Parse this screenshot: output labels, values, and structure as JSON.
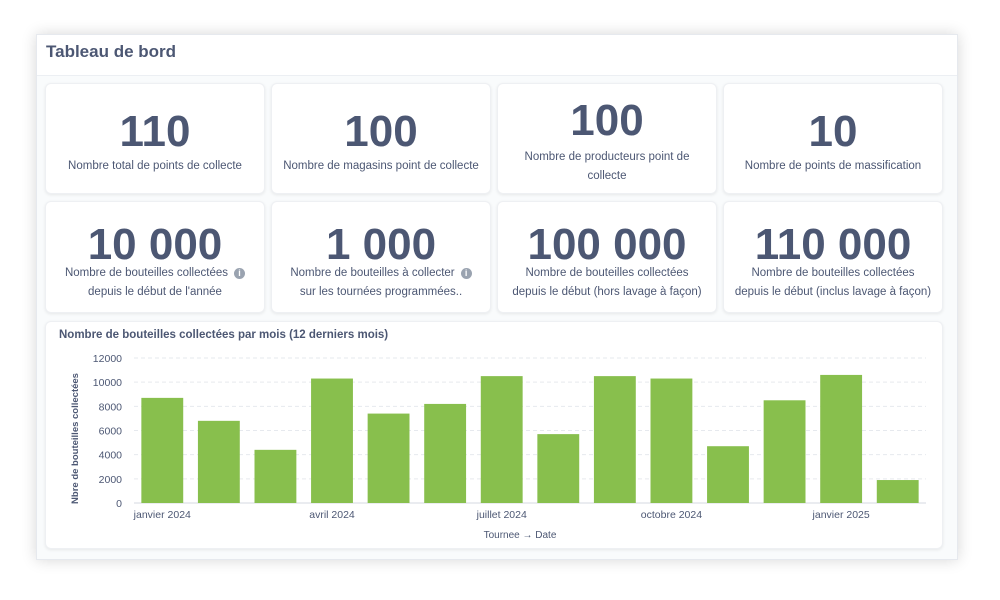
{
  "dashboard": {
    "title": "Tableau de bord"
  },
  "stats_row1": [
    {
      "value": "110",
      "label_lines": [
        "Nombre total de points de collecte"
      ]
    },
    {
      "value": "100",
      "label_lines": [
        "Nombre de magasins point de collecte"
      ]
    },
    {
      "value": "100",
      "label_lines": [
        "Nombre de producteurs point de",
        "collecte"
      ]
    },
    {
      "value": "10",
      "label_lines": [
        "Nombre de points de massification"
      ]
    }
  ],
  "stats_row2": [
    {
      "value": "10 000",
      "label_lines": [
        "Nombre de bouteilles collectées",
        "depuis le début de l'année"
      ],
      "info": true
    },
    {
      "value": "1 000",
      "label_lines": [
        "Nombre de bouteilles à collecter",
        "sur les tournées programmées.."
      ],
      "info": true
    },
    {
      "value": "100 000",
      "label_lines": [
        "Nombre de bouteilles collectées",
        "depuis le début (hors lavage à façon)"
      ]
    },
    {
      "value": "110 000",
      "label_lines": [
        "Nombre de bouteilles collectées",
        "depuis le début (inclus lavage à façon)"
      ]
    }
  ],
  "chart_data": {
    "type": "bar",
    "title": "Nombre de bouteilles collectées par mois (12 derniers mois)",
    "xlabel": "Tournee → Date",
    "ylabel": "Nbre de bouteilles collectées",
    "ylim": [
      0,
      12000
    ],
    "yticks": [
      0,
      2000,
      4000,
      6000,
      8000,
      10000,
      12000
    ],
    "x": [
      "2024-01",
      "2024-02",
      "2024-03",
      "2024-04",
      "2024-05",
      "2024-06",
      "2024-07",
      "2024-08",
      "2024-09",
      "2024-10",
      "2024-11",
      "2024-12",
      "2025-01",
      "2025-02"
    ],
    "xtick_labels": [
      {
        "x": "2024-01",
        "label": "janvier 2024"
      },
      {
        "x": "2024-04",
        "label": "avril 2024"
      },
      {
        "x": "2024-07",
        "label": "juillet 2024"
      },
      {
        "x": "2024-10",
        "label": "octobre 2024"
      },
      {
        "x": "2025-01",
        "label": "janvier 2025"
      }
    ],
    "values": [
      8700,
      6800,
      4400,
      10300,
      7400,
      8200,
      10500,
      5700,
      10500,
      10300,
      4700,
      8500,
      10600,
      1900
    ],
    "bar_color": "#88bf4d",
    "grid": true
  },
  "info_icon": "info-icon"
}
